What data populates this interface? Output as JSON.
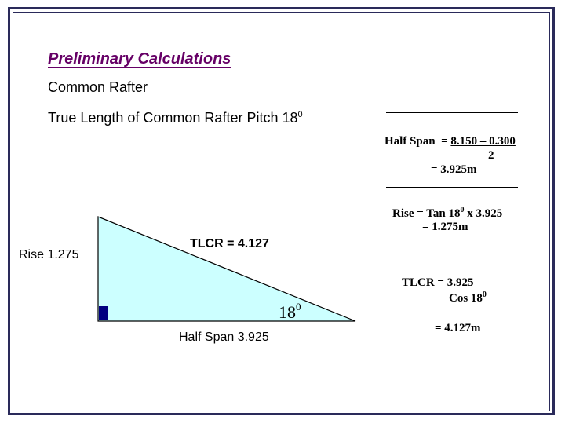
{
  "slide": {
    "title": "Preliminary Calculations",
    "subtitle": "Common Rafter",
    "line_text": "True Length of Common Rafter  Pitch 18",
    "line_sup": "0"
  },
  "diagram": {
    "rise_label": "Rise 1.275",
    "tlcr_label": "TLCR = 4.127",
    "halfspan_label": "Half Span 3.925",
    "angle_text": "18",
    "angle_sup": "0",
    "fill_color": "#ccffff",
    "right_angle_color": "#000080"
  },
  "calculations": {
    "half_span": {
      "line1_prefix": "Half Span  = ",
      "line1_value": "8.150 – 0.300",
      "line2": "2",
      "line3": "= 3.925m"
    },
    "rise": {
      "line1_prefix": "Rise = Tan 18",
      "line1_sup": "0",
      "line1_suffix": " x 3.925",
      "line2": "= 1.275m"
    },
    "tlcr": {
      "line1_prefix": "TLCR = ",
      "line1_value": "3.925",
      "line2_prefix": "Cos 18",
      "line2_sup": "0",
      "line3": "= 4.127m"
    }
  }
}
